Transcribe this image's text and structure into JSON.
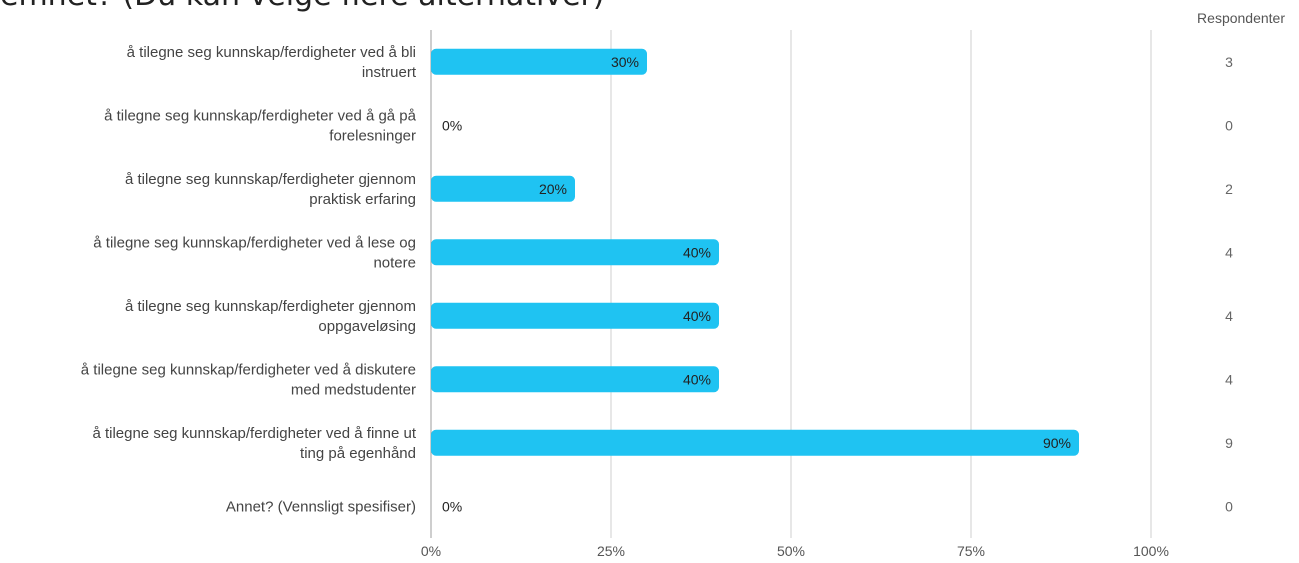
{
  "header": {
    "title": "emnet? (Du kan velge flere alternativer)",
    "respondents_label": "Respondenter"
  },
  "chart_data": {
    "type": "bar",
    "orientation": "horizontal",
    "categories": [
      [
        "å tilegne seg kunnskap/ferdigheter ved å bli",
        "instruert"
      ],
      [
        "å tilegne seg kunnskap/ferdigheter ved å gå på",
        "forelesninger"
      ],
      [
        "å tilegne seg kunnskap/ferdigheter gjennom",
        "praktisk erfaring"
      ],
      [
        "å tilegne seg kunnskap/ferdigheter ved å lese og",
        "notere"
      ],
      [
        "å tilegne seg kunnskap/ferdigheter gjennom",
        "oppgaveløsing"
      ],
      [
        "å tilegne seg kunnskap/ferdigheter ved å diskutere",
        "med medstudenter"
      ],
      [
        "å tilegne seg kunnskap/ferdigheter ved å finne ut",
        "ting på egenhånd"
      ],
      [
        "Annet? (Vennsligt spesifiser)"
      ]
    ],
    "values": [
      30,
      0,
      20,
      40,
      40,
      40,
      90,
      0
    ],
    "value_labels": [
      "30%",
      "0%",
      "20%",
      "40%",
      "40%",
      "40%",
      "90%",
      "0%"
    ],
    "respondents": [
      "3",
      "0",
      "2",
      "4",
      "4",
      "4",
      "9",
      "0"
    ],
    "xlim": [
      0,
      100
    ],
    "xticks": [
      0,
      25,
      50,
      75,
      100
    ],
    "xtick_labels": [
      "0%",
      "25%",
      "50%",
      "75%",
      "100%"
    ],
    "grid": true,
    "bar_color": "#1fc3f2"
  }
}
